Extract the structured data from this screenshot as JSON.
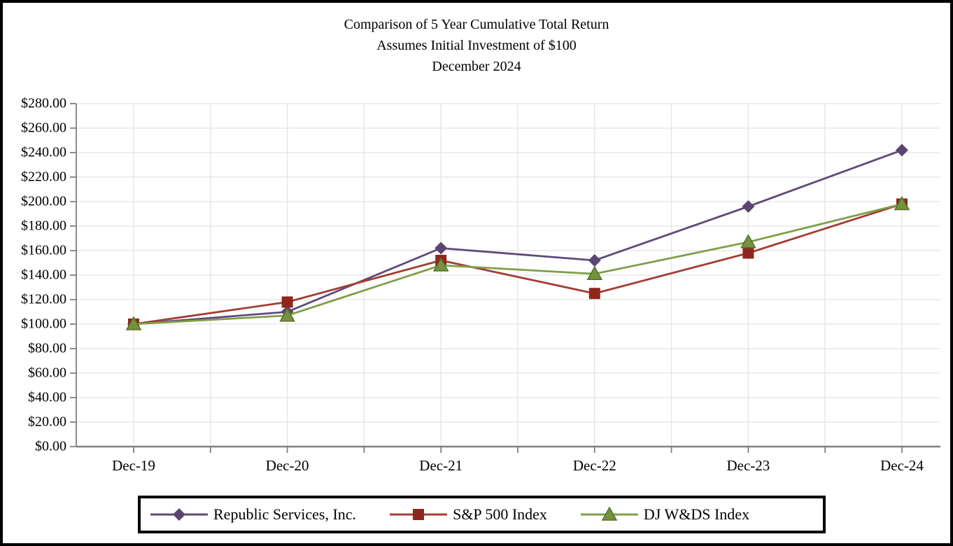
{
  "chart_data": {
    "type": "line",
    "title": "Comparison of 5 Year Cumulative Total Return",
    "subtitle": "Assumes Initial Investment of $100",
    "date_line": "December 2024",
    "categories": [
      "Dec-19",
      "Dec-20",
      "Dec-21",
      "Dec-22",
      "Dec-23",
      "Dec-24"
    ],
    "series": [
      {
        "name": "Republic Services, Inc.",
        "values": [
          100.0,
          110.0,
          162.0,
          152.0,
          196.0,
          242.0
        ],
        "line_color": "#604A7B",
        "marker": "diamond",
        "marker_color": "#5B4573"
      },
      {
        "name": "S&P 500 Index",
        "values": [
          100.0,
          118.0,
          152.0,
          125.0,
          158.0,
          198.0
        ],
        "line_color": "#A33D31",
        "marker": "square",
        "marker_color": "#8F261C"
      },
      {
        "name": "DJ W&DS Index",
        "values": [
          100.0,
          107.0,
          148.0,
          141.0,
          167.0,
          198.0
        ],
        "line_color": "#7F9F49",
        "marker": "triangle",
        "marker_color": "#76923C",
        "marker_edge_color": "#55702A"
      }
    ],
    "ylim": [
      0,
      280
    ],
    "ytick_step": 20,
    "ytick_prefix": "$",
    "ytick_decimals": 2,
    "grid": true,
    "legend_position": "bottom",
    "axis_color": "#808080",
    "grid_color": "#E4E4E4",
    "text_color": "#000000"
  }
}
